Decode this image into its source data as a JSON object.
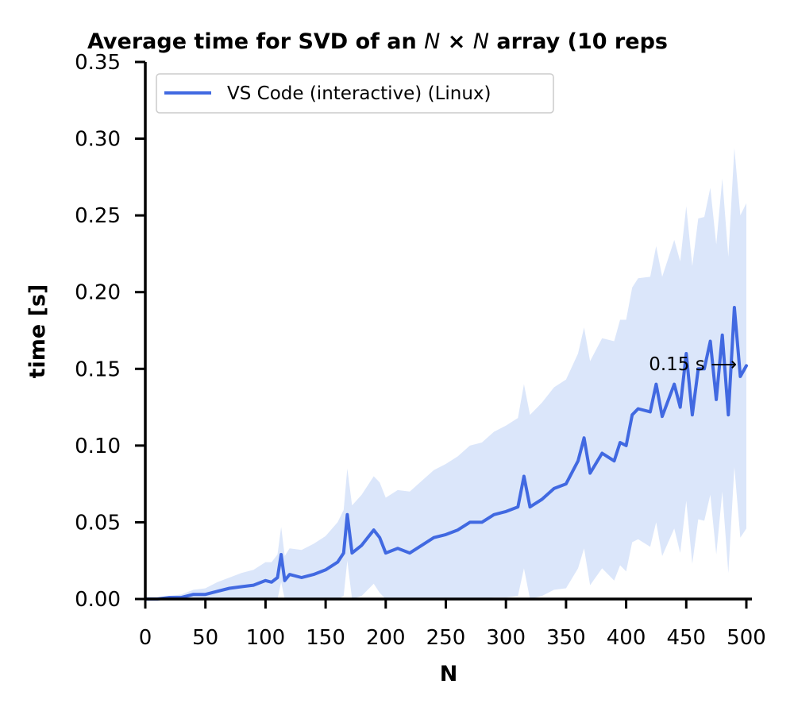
{
  "chart_data": {
    "type": "line",
    "title": "Average time for SVD of an N × N array (10 reps",
    "xlabel": "N",
    "ylabel": "time [s]",
    "xlim": [
      0,
      505
    ],
    "ylim": [
      0,
      0.35
    ],
    "xticks": [
      "0",
      "50",
      "100",
      "150",
      "200",
      "250",
      "300",
      "350",
      "400",
      "450",
      "500"
    ],
    "yticks": [
      "0.00",
      "0.05",
      "0.10",
      "0.15",
      "0.20",
      "0.25",
      "0.30",
      "0.35"
    ],
    "grid": false,
    "legend_position": "top-left",
    "annotation": {
      "text": "0.15 s ⟶",
      "x": 500,
      "y": 0.152
    },
    "series": [
      {
        "name": "VS Code (interactive) (Linux)",
        "color": "#4169e1",
        "band_color": "#dbe6fa",
        "x": [
          0,
          10,
          20,
          30,
          40,
          50,
          60,
          70,
          80,
          90,
          100,
          105,
          110,
          113,
          116,
          120,
          130,
          140,
          150,
          160,
          165,
          168,
          172,
          180,
          190,
          195,
          200,
          210,
          220,
          230,
          240,
          250,
          260,
          270,
          280,
          290,
          300,
          310,
          315,
          320,
          330,
          340,
          350,
          360,
          365,
          370,
          380,
          390,
          395,
          400,
          405,
          410,
          420,
          425,
          430,
          440,
          445,
          450,
          455,
          460,
          465,
          470,
          475,
          480,
          485,
          490,
          495,
          500
        ],
        "y": [
          0.0,
          0.0,
          0.001,
          0.001,
          0.003,
          0.003,
          0.005,
          0.007,
          0.008,
          0.009,
          0.012,
          0.011,
          0.014,
          0.029,
          0.012,
          0.016,
          0.014,
          0.016,
          0.019,
          0.024,
          0.03,
          0.055,
          0.03,
          0.035,
          0.045,
          0.04,
          0.03,
          0.033,
          0.03,
          0.035,
          0.04,
          0.042,
          0.045,
          0.05,
          0.05,
          0.055,
          0.057,
          0.06,
          0.08,
          0.06,
          0.065,
          0.072,
          0.075,
          0.09,
          0.105,
          0.082,
          0.095,
          0.09,
          0.102,
          0.1,
          0.12,
          0.124,
          0.122,
          0.14,
          0.119,
          0.14,
          0.125,
          0.16,
          0.12,
          0.15,
          0.15,
          0.168,
          0.13,
          0.172,
          0.12,
          0.19,
          0.145,
          0.152
        ],
        "band": [
          0.0,
          0.001,
          0.001,
          0.002,
          0.003,
          0.004,
          0.006,
          0.007,
          0.009,
          0.01,
          0.012,
          0.013,
          0.015,
          0.018,
          0.016,
          0.017,
          0.018,
          0.02,
          0.022,
          0.026,
          0.028,
          0.03,
          0.031,
          0.033,
          0.035,
          0.036,
          0.036,
          0.038,
          0.04,
          0.042,
          0.044,
          0.046,
          0.048,
          0.05,
          0.052,
          0.054,
          0.056,
          0.058,
          0.06,
          0.06,
          0.063,
          0.066,
          0.068,
          0.07,
          0.072,
          0.073,
          0.075,
          0.078,
          0.08,
          0.082,
          0.083,
          0.085,
          0.088,
          0.09,
          0.091,
          0.094,
          0.095,
          0.096,
          0.097,
          0.098,
          0.099,
          0.1,
          0.101,
          0.102,
          0.103,
          0.104,
          0.105,
          0.106
        ]
      }
    ]
  }
}
